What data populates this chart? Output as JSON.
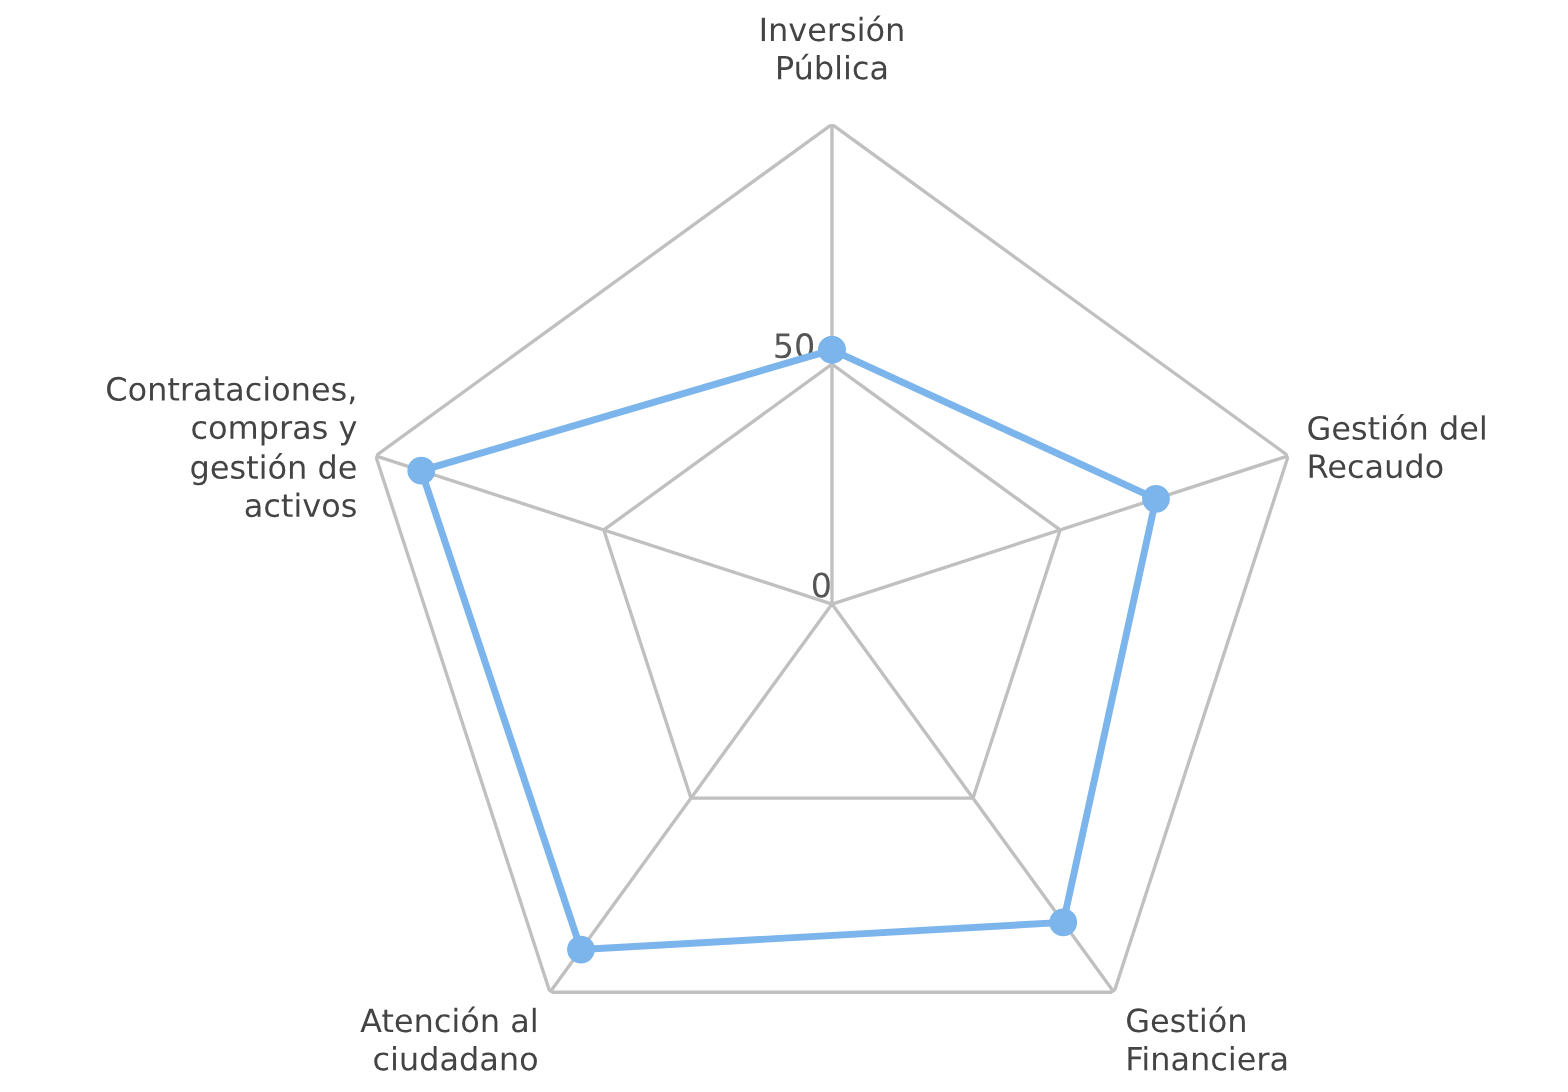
{
  "chart_data": {
    "type": "radar",
    "categories": [
      "Inversión\nPública",
      "Gestión del\nRecaudo",
      "Gestión\nFinanciera",
      "Atención al\nciudadano",
      "Contrataciones,\ncompras y\ngestión de\nactivos"
    ],
    "series": [
      {
        "color": "#7cb5ec",
        "values": [
          53,
          71,
          82,
          89,
          90
        ]
      }
    ],
    "ylim": [
      0,
      100
    ],
    "yticks": [
      0,
      50
    ],
    "marker": "circle",
    "line_style": "solid",
    "grid": true,
    "legend": false
  }
}
